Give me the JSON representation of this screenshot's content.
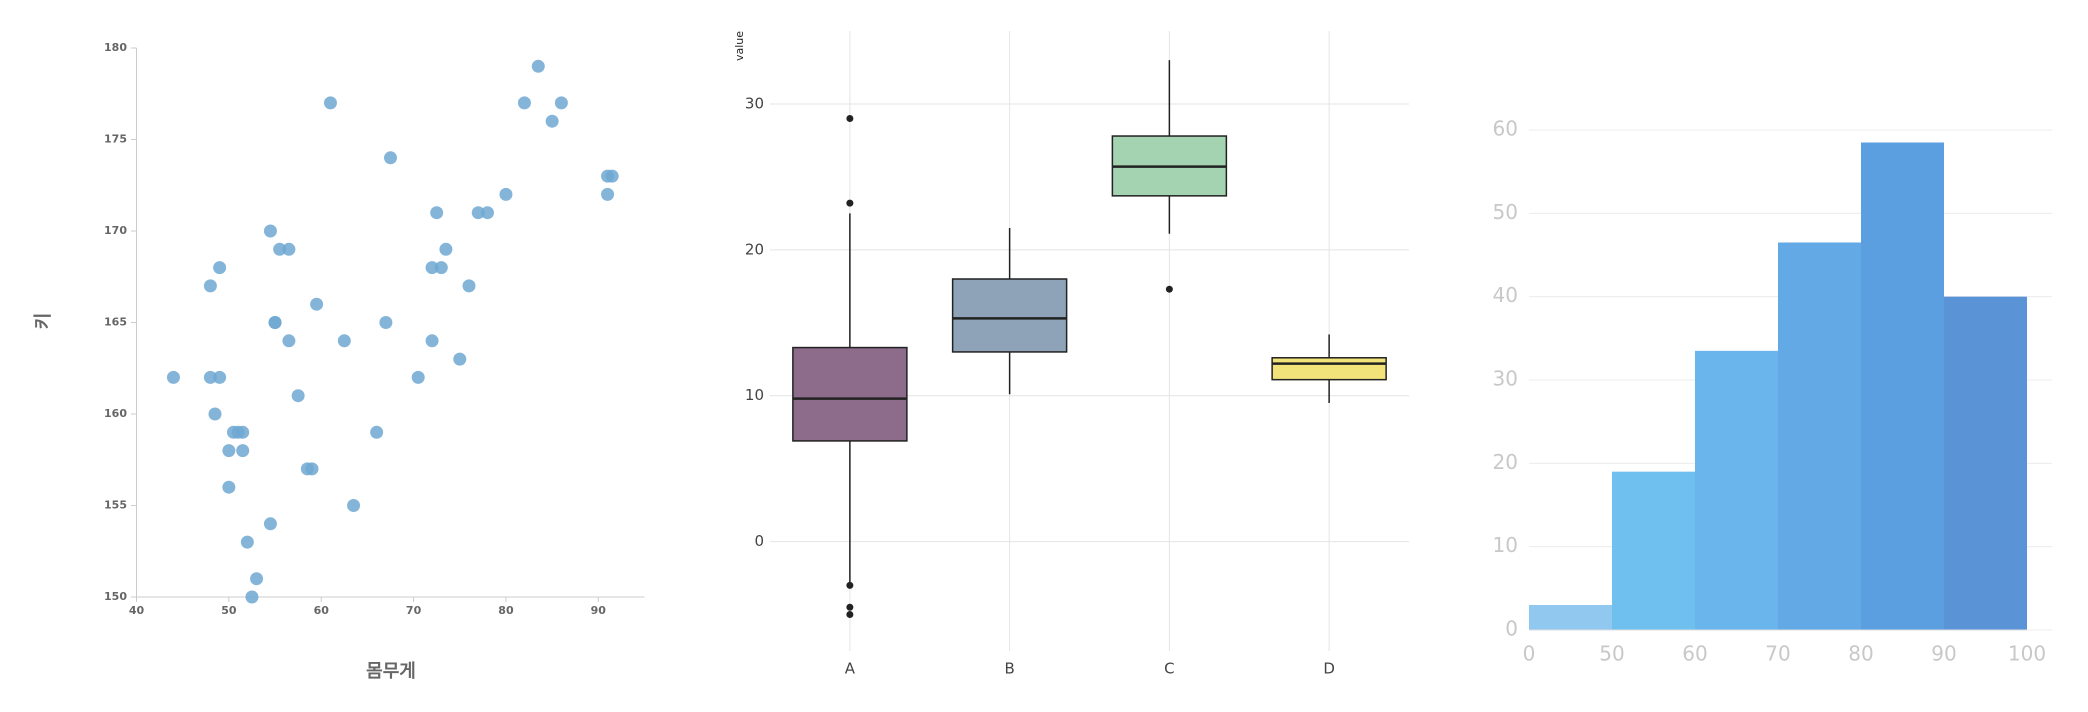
{
  "chart_data": [
    {
      "type": "scatter",
      "x_label": "몸무게",
      "y_label": "키",
      "color": "#6fa8d2",
      "x": [
        44,
        48,
        48,
        48.5,
        49,
        49,
        50,
        50,
        50.5,
        51,
        51.5,
        51.5,
        52,
        52.5,
        53,
        54.5,
        54.5,
        55,
        55,
        55.5,
        56.5,
        56.5,
        57.5,
        58.5,
        59,
        59.5,
        61,
        62.5,
        63.5,
        66,
        67,
        67.5,
        70.5,
        72,
        72,
        72.5,
        73,
        73.5,
        75,
        76,
        77,
        78,
        80,
        82,
        83.5,
        85,
        86,
        91,
        91,
        91.5
      ],
      "y": [
        162,
        167,
        162,
        160,
        168,
        162,
        158,
        156,
        159,
        159,
        158,
        159,
        153,
        150,
        151,
        154,
        170,
        165,
        165,
        169,
        164,
        169,
        161,
        157,
        157,
        166,
        177,
        164,
        155,
        159,
        165,
        174,
        162,
        168,
        164,
        171,
        168,
        169,
        163,
        167,
        171,
        171,
        172,
        177,
        179,
        176,
        177,
        173,
        172,
        173
      ],
      "xlim": [
        40,
        95
      ],
      "xticks": [
        40,
        50,
        60,
        70,
        80,
        90
      ],
      "ylim": [
        150,
        180
      ],
      "yticks": [
        150,
        155,
        160,
        165,
        170,
        175,
        180
      ]
    },
    {
      "type": "box",
      "y_label": "value",
      "categories": [
        "A",
        "B",
        "C",
        "D"
      ],
      "colors": [
        "#8c6b8b",
        "#8fa3b8",
        "#a3d3b0",
        "#f2e27a"
      ],
      "boxes": [
        {
          "whisker_low": -3.2,
          "q1": 6.9,
          "median": 9.8,
          "q3": 13.3,
          "whisker_high": 22.5,
          "outliers": [
            23.2,
            29,
            -3,
            -4.5,
            -5
          ]
        },
        {
          "whisker_low": 10.1,
          "q1": 13,
          "median": 15.3,
          "q3": 18,
          "whisker_high": 21.5,
          "outliers": []
        },
        {
          "whisker_low": 21.1,
          "q1": 23.7,
          "median": 25.7,
          "q3": 27.8,
          "whisker_high": 33,
          "outliers": [
            17.3
          ]
        },
        {
          "whisker_low": 9.5,
          "q1": 11.1,
          "median": 12.2,
          "q3": 12.6,
          "whisker_high": 14.2,
          "outliers": []
        }
      ],
      "ylim": [
        -7.5,
        35
      ],
      "yticks": [
        0,
        10,
        20,
        30
      ],
      "grid": true
    },
    {
      "type": "histogram",
      "bins": [
        0,
        50,
        60,
        70,
        80,
        90,
        100
      ],
      "values": [
        3,
        19,
        33.5,
        46.5,
        58.5,
        40
      ],
      "colors": [
        "#90c8f0",
        "#6fc0ef",
        "#6ab5ec",
        "#63a9e6",
        "#5b9fe0",
        "#5a93d6"
      ],
      "ylim": [
        0,
        63
      ],
      "yticks": [
        0,
        10,
        20,
        30,
        40,
        50,
        60
      ],
      "grid": true
    }
  ]
}
